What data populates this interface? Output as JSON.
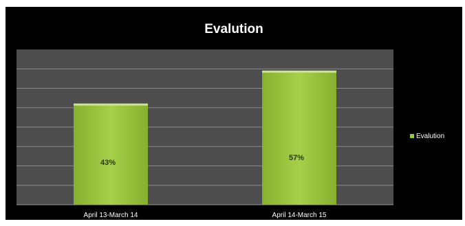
{
  "chart_data": {
    "type": "bar",
    "title": "Evalution",
    "categories": [
      "April 13-March 14",
      "April 14-March 15"
    ],
    "series": [
      {
        "name": "Evalution",
        "values": [
          43,
          57
        ],
        "labels": [
          "43%",
          "57%"
        ]
      }
    ],
    "ylim": [
      0,
      66
    ],
    "grid": true,
    "legend": "right",
    "colors": {
      "background": "#000000",
      "plot_area": "#4d4d4d",
      "gridline": "#8a8a8a",
      "bar": "#9bc53d",
      "bar_top": "#c8e68a",
      "text": "#ffffff"
    }
  }
}
